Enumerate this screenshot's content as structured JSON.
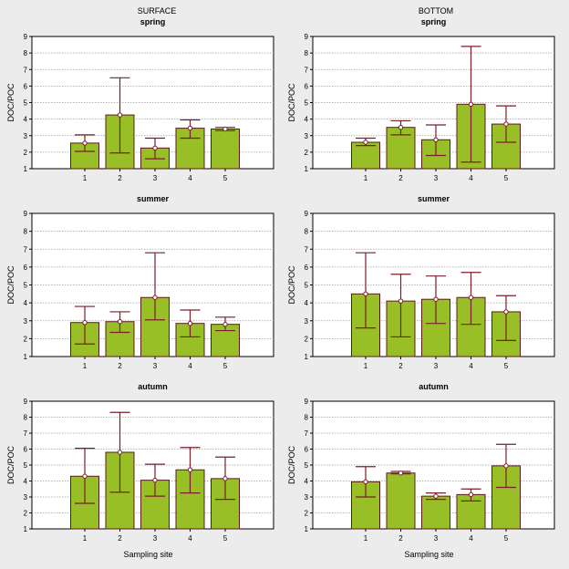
{
  "figure": {
    "column_titles": [
      "SURFACE",
      "BOTTOM"
    ],
    "colors": {
      "background": "#ececec",
      "plot_area": "#ffffff",
      "bar_fill": "#99bf26",
      "bar_edge": "#5b1a1a",
      "error_bar": "#7a1e2a",
      "grid": "#9a9a9a"
    }
  },
  "chart_data": [
    {
      "type": "bar",
      "column": "SURFACE",
      "title": "spring",
      "categories": [
        "1",
        "2",
        "3",
        "4",
        "5"
      ],
      "values": [
        2.55,
        4.25,
        2.25,
        3.45,
        3.4
      ],
      "error_low": [
        2.05,
        1.95,
        1.6,
        2.85,
        3.3
      ],
      "error_high": [
        3.05,
        6.5,
        2.85,
        3.95,
        3.5
      ],
      "ylabel": "DOC/POC",
      "xlabel": "",
      "yticks": [
        1,
        2,
        3,
        4,
        5,
        6,
        7,
        8,
        9
      ],
      "ylim": [
        1,
        9
      ],
      "grid": true
    },
    {
      "type": "bar",
      "column": "BOTTOM",
      "title": "spring",
      "categories": [
        "1",
        "2",
        "3",
        "4",
        "5"
      ],
      "values": [
        2.6,
        3.5,
        2.75,
        4.9,
        3.7
      ],
      "error_low": [
        2.4,
        3.05,
        1.8,
        1.4,
        2.6
      ],
      "error_high": [
        2.85,
        3.9,
        3.65,
        8.4,
        4.8
      ],
      "ylabel": "DOC/POC",
      "xlabel": "",
      "yticks": [
        1,
        2,
        3,
        4,
        5,
        6,
        7,
        8,
        9
      ],
      "ylim": [
        1,
        9
      ],
      "grid": true
    },
    {
      "type": "bar",
      "column": "SURFACE",
      "title": "summer",
      "categories": [
        "1",
        "2",
        "3",
        "4",
        "5"
      ],
      "values": [
        2.9,
        2.95,
        4.3,
        2.85,
        2.8
      ],
      "error_low": [
        1.7,
        2.35,
        3.05,
        2.1,
        2.45
      ],
      "error_high": [
        3.8,
        3.5,
        6.8,
        3.6,
        3.2
      ],
      "ylabel": "DOC/POC",
      "xlabel": "",
      "yticks": [
        1,
        2,
        3,
        4,
        5,
        6,
        7,
        8,
        9
      ],
      "ylim": [
        1,
        9
      ],
      "grid": true
    },
    {
      "type": "bar",
      "column": "BOTTOM",
      "title": "summer",
      "categories": [
        "1",
        "2",
        "3",
        "4",
        "5"
      ],
      "values": [
        4.5,
        4.1,
        4.2,
        4.3,
        3.5
      ],
      "error_low": [
        2.6,
        2.1,
        2.85,
        2.8,
        1.9
      ],
      "error_high": [
        6.8,
        5.6,
        5.5,
        5.7,
        4.4
      ],
      "ylabel": "DOC/POC",
      "xlabel": "",
      "yticks": [
        1,
        2,
        3,
        4,
        5,
        6,
        7,
        8,
        9
      ],
      "ylim": [
        1,
        9
      ],
      "grid": true
    },
    {
      "type": "bar",
      "column": "SURFACE",
      "title": "autumn",
      "categories": [
        "1",
        "2",
        "3",
        "4",
        "5"
      ],
      "values": [
        4.3,
        5.8,
        4.05,
        4.7,
        4.15
      ],
      "error_low": [
        2.6,
        3.3,
        3.05,
        3.25,
        2.85
      ],
      "error_high": [
        6.05,
        8.3,
        5.05,
        6.1,
        5.5
      ],
      "ylabel": "DOC/POC",
      "xlabel": "Sampling site",
      "yticks": [
        1,
        2,
        3,
        4,
        5,
        6,
        7,
        8,
        9
      ],
      "ylim": [
        1,
        9
      ],
      "grid": true
    },
    {
      "type": "bar",
      "column": "BOTTOM",
      "title": "autumn",
      "categories": [
        "1",
        "2",
        "3",
        "4",
        "5"
      ],
      "values": [
        3.95,
        4.5,
        3.05,
        3.15,
        4.95
      ],
      "error_low": [
        3.0,
        4.45,
        2.85,
        2.75,
        3.6
      ],
      "error_high": [
        4.9,
        4.6,
        3.25,
        3.5,
        6.3
      ],
      "ylabel": "DOC/POC",
      "xlabel": "Sampling site",
      "yticks": [
        1,
        2,
        3,
        4,
        5,
        6,
        7,
        8,
        9
      ],
      "ylim": [
        1,
        9
      ],
      "grid": true
    }
  ]
}
